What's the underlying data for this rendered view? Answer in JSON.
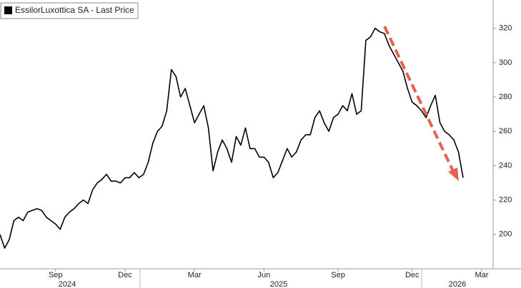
{
  "chart_data": {
    "type": "line",
    "categories": [
      null,
      null,
      null,
      null,
      null,
      null,
      null,
      null,
      null,
      null,
      null,
      null,
      "Sep",
      null,
      null,
      null,
      null,
      null,
      null,
      null,
      null,
      null,
      null,
      null,
      null,
      null,
      null,
      "Dec",
      null,
      null,
      null,
      null,
      null,
      null,
      null,
      null,
      null,
      null,
      null,
      null,
      null,
      null,
      "Mar",
      null,
      null,
      null,
      null,
      null,
      null,
      null,
      null,
      null,
      null,
      null,
      null,
      null,
      null,
      "Jun",
      null,
      null,
      null,
      null,
      null,
      null,
      null,
      null,
      null,
      null,
      null,
      null,
      null,
      null,
      null,
      "Sep",
      null,
      null,
      null,
      null,
      null,
      null,
      null,
      null,
      null,
      null,
      null,
      null,
      null,
      null,
      null,
      "Dec",
      null,
      null,
      null,
      null,
      null,
      null,
      null,
      null,
      null,
      null,
      null,
      null,
      null,
      null,
      "Mar",
      null
    ],
    "years": [
      "2024",
      "2025",
      "2026"
    ],
    "series": [
      {
        "name": "EssilorLuxottica SA - Last Price",
        "color": "#000000",
        "values": [
          200,
          192,
          197,
          208,
          210,
          208,
          213,
          214,
          215,
          214,
          210,
          208,
          206,
          203,
          210,
          213,
          215,
          218,
          220,
          218,
          226,
          230,
          232,
          235,
          231,
          231,
          230,
          233,
          233,
          236,
          233,
          235,
          242,
          253,
          260,
          263,
          272,
          296,
          292,
          280,
          285,
          275,
          265,
          270,
          275,
          262,
          237,
          248,
          255,
          250,
          242,
          257,
          252,
          262,
          250,
          250,
          245,
          245,
          242,
          233,
          236,
          243,
          250,
          245,
          248,
          255,
          258,
          258,
          268,
          272,
          265,
          260,
          268,
          270,
          275,
          272,
          282,
          270,
          272,
          313,
          315,
          320,
          318,
          317,
          310,
          305,
          300,
          295,
          285,
          277,
          275,
          272,
          268,
          275,
          281,
          265,
          260,
          258,
          255,
          248,
          233,
          null,
          null,
          null,
          null,
          null
        ]
      }
    ],
    "ylim": [
      180,
      336.5
    ],
    "yticks": [
      200,
      220,
      240,
      260,
      280,
      300,
      320
    ],
    "legend": "top-left"
  }
}
